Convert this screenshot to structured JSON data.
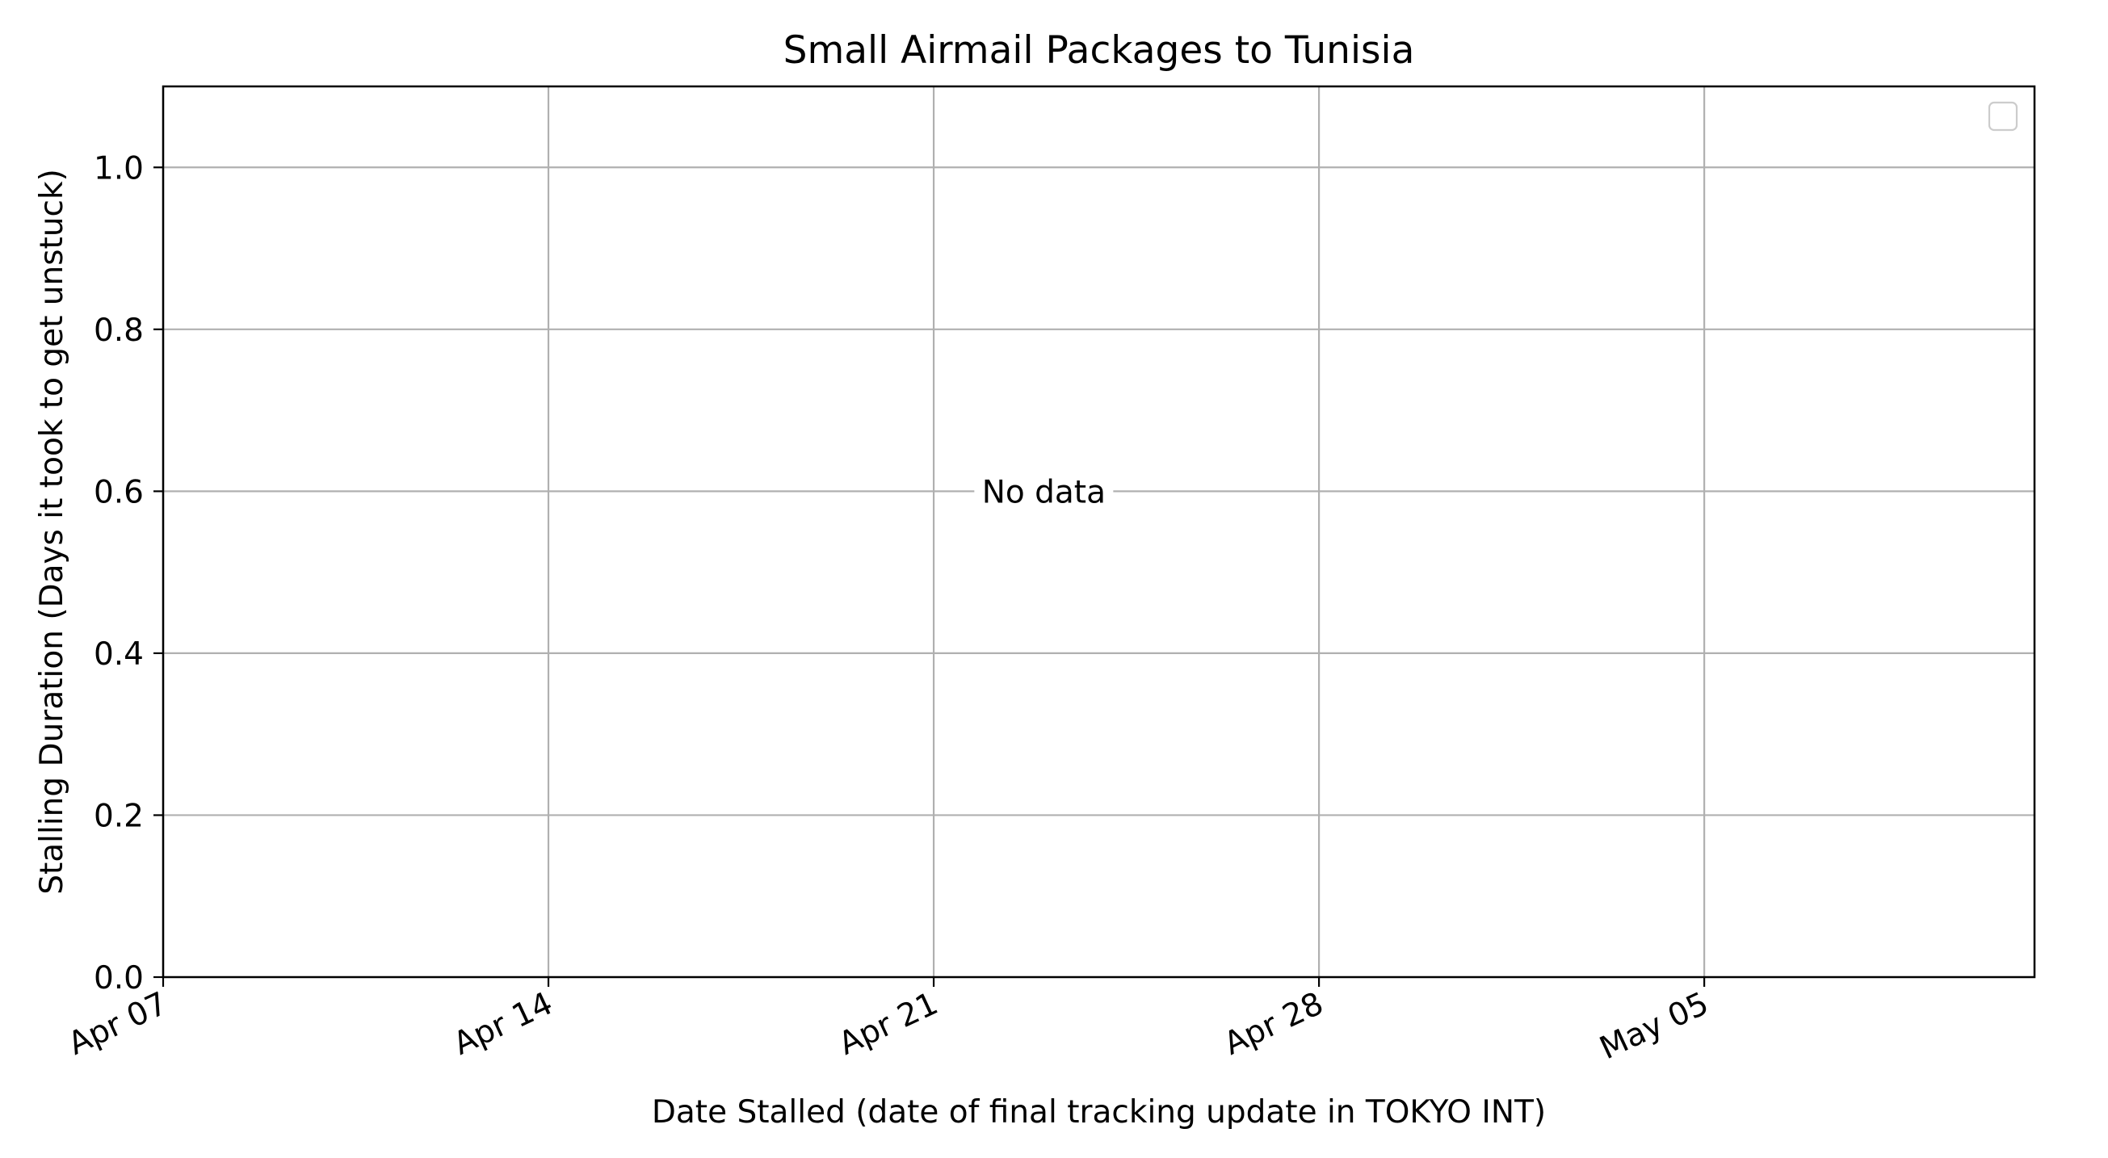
{
  "chart_data": {
    "type": "scatter",
    "title": "Small Airmail Packages to Tunisia",
    "xlabel": "Date Stalled (date of final tracking update in TOKYO INT)",
    "ylabel": "Stalling Duration (Days it took to get unstuck)",
    "xlim": [
      "2024-04-07",
      "2024-05-11"
    ],
    "ylim": [
      0,
      1.1
    ],
    "x_ticks": [
      {
        "date": "2024-04-07",
        "label": "Apr 07"
      },
      {
        "date": "2024-04-14",
        "label": "Apr 14"
      },
      {
        "date": "2024-04-21",
        "label": "Apr 21"
      },
      {
        "date": "2024-04-28",
        "label": "Apr 28"
      },
      {
        "date": "2024-05-05",
        "label": "May 05"
      }
    ],
    "y_ticks": [
      {
        "value": 0.0,
        "label": "0.0"
      },
      {
        "value": 0.2,
        "label": "0.2"
      },
      {
        "value": 0.4,
        "label": "0.4"
      },
      {
        "value": 0.6,
        "label": "0.6"
      },
      {
        "value": 0.8,
        "label": "0.8"
      },
      {
        "value": 1.0,
        "label": "1.0"
      }
    ],
    "grid": true,
    "legend": {
      "position": "top-right",
      "entries": []
    },
    "series": [],
    "annotation": {
      "text": "No data",
      "x": "2024-04-23",
      "y": 0.6
    },
    "colors": {
      "grid": "#b0b0b0",
      "axis": "#000000",
      "background": "#ffffff"
    }
  }
}
